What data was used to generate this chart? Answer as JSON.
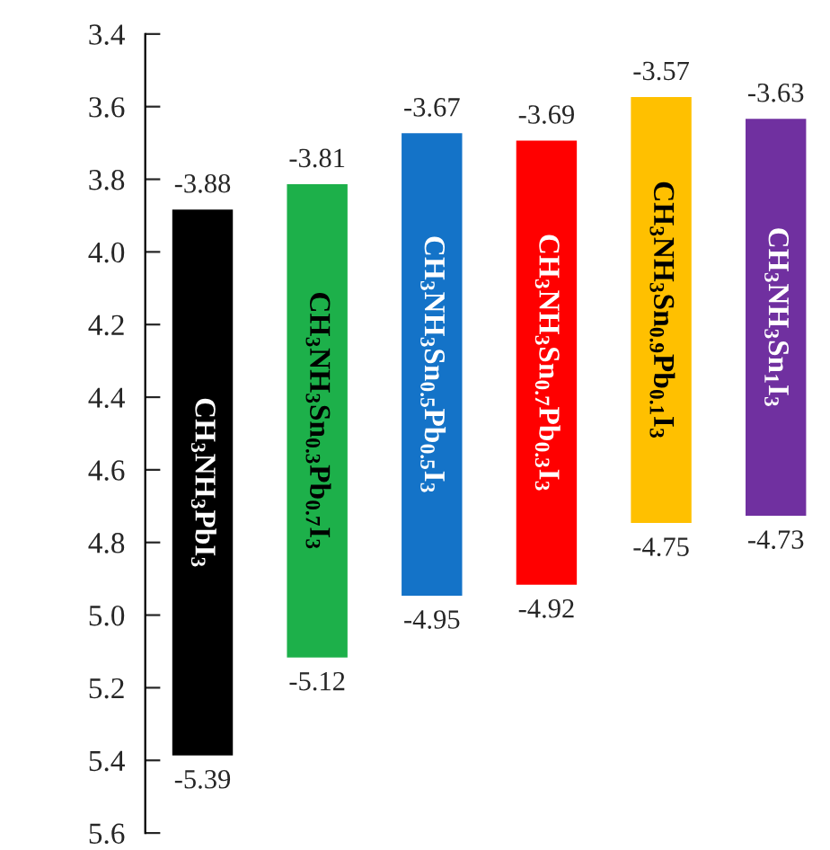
{
  "chart_data": {
    "type": "bar",
    "categories": [
      "CH$_{3}$NH$_{3}$PbI$_{3}$",
      "CH$_{3}$NH$_{3}$Sn$_{0.3}$Pb$_{0.7}$I$_{3}$",
      "CH$_{3}$NH$_{3}$Sn$_{0.5}$Pb$_{0.5}$I$_{3}$",
      "CH$_{3}$NH$_{3}$Sn$_{0.7}$Pb$_{0.3}$I$_{3}$",
      "CH$_{3}$NH$_{3}$Sn$_{0.9}$Pb$_{0.1}$I$_{3}$",
      "CH$_{3}$NH$_{3}$Sn$_{1}$I$_{3}$"
    ],
    "base": [
      3.88,
      3.81,
      3.67,
      3.69,
      3.57,
      3.63
    ],
    "values": [
      1.51,
      1.31,
      1.28,
      1.23,
      1.18,
      1.1
    ],
    "colors": [
      "#000000",
      "#1db04a",
      "#1473c8",
      "#ff0000",
      "#ffc000",
      "#7030a0"
    ],
    "ylim": [
      5.6,
      3.4
    ],
    "yticks": [
      3.4,
      3.6,
      3.8,
      {
        "value": 4,
        "label": "4.0"
      },
      4.2,
      4.4,
      4.6,
      4.8,
      {
        "value": 5,
        "label": "5.0"
      },
      5.2,
      5.4,
      5.6
    ],
    "tick_labels": "y",
    "grid": false,
    "legend": false,
    "annotations": [
      {
        "text": "-3.88",
        "x": "CH$_{3}$NH$_{3}$PbI$_{3}$",
        "y": 3.88
      },
      {
        "text": "-5.39",
        "x": "CH$_{3}$NH$_{3}$PbI$_{3}$",
        "y": 5.39
      },
      {
        "text": "-3.81",
        "x": "CH$_{3}$NH$_{3}$Sn$_{0.3}$Pb$_{0.7}$I$_{3}$",
        "y": 3.81
      },
      {
        "text": "-5.12",
        "x": "CH$_{3}$NH$_{3}$Sn$_{0.3}$Pb$_{0.7}$I$_{3}$",
        "y": 5.12
      },
      {
        "text": "-3.67",
        "x": "CH$_{3}$NH$_{3}$Sn$_{0.5}$Pb$_{0.5}$I$_{3}$",
        "y": 3.67
      },
      {
        "text": "-4.95",
        "x": "CH$_{3}$NH$_{3}$Sn$_{0.5}$Pb$_{0.5}$I$_{3}$",
        "y": 4.95
      },
      {
        "text": "-3.69",
        "x": "CH$_{3}$NH$_{3}$Sn$_{0.7}$Pb$_{0.3}$I$_{3}$",
        "y": 3.69
      },
      {
        "text": "-4.92",
        "x": "CH$_{3}$NH$_{3}$Sn$_{0.7}$Pb$_{0.3}$I$_{3}$",
        "y": 4.92
      },
      {
        "text": "-3.57",
        "x": "CH$_{3}$NH$_{3}$Sn$_{0.9}$Pb$_{0.1}$I$_{3}$",
        "y": 3.57
      },
      {
        "text": "-4.75",
        "x": "CH$_{3}$NH$_{3}$Sn$_{0.9}$Pb$_{0.1}$I$_{3}$",
        "y": 4.75
      },
      {
        "text": "-3.63",
        "x": "CH$_{3}$NH$_{3}$Sn$_{1}$I$_{3}$",
        "y": 3.63
      },
      {
        "text": "-4.73",
        "x": "CH$_{3}$NH$_{3}$Sn$_{1}$I$_{3}$",
        "y": 4.73
      }
    ]
  }
}
